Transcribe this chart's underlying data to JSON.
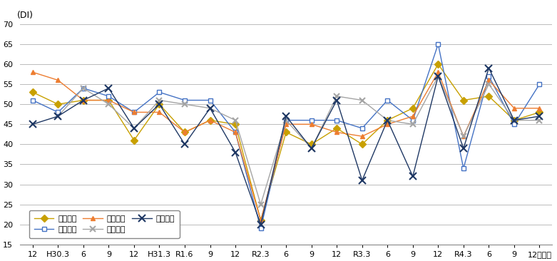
{
  "x_labels": [
    "12",
    "H30.3",
    "6",
    "9",
    "12",
    "H31.3",
    "R1.6",
    "9",
    "12",
    "R2.3",
    "6",
    "9",
    "12",
    "R3.3",
    "6",
    "9",
    "12",
    "R4.3",
    "6",
    "9",
    "12（月）"
  ],
  "series": [
    {
      "name": "県北地域",
      "color": "#C8A000",
      "marker": "D",
      "marker_size": 5,
      "marker_face": "#C8A000",
      "values": [
        53,
        50,
        51,
        51,
        41,
        50,
        43,
        46,
        45,
        21,
        43,
        40,
        44,
        40,
        46,
        49,
        60,
        51,
        52,
        46,
        48
      ]
    },
    {
      "name": "県央地域",
      "color": "#4472C4",
      "marker": "s",
      "marker_size": 5,
      "marker_face": "white",
      "values": [
        51,
        48,
        54,
        52,
        48,
        53,
        51,
        51,
        43,
        19,
        46,
        46,
        46,
        44,
        51,
        46,
        65,
        34,
        57,
        45,
        55
      ]
    },
    {
      "name": "鹿行地域",
      "color": "#ED7D31",
      "marker": "^",
      "marker_size": 5,
      "marker_face": "#ED7D31",
      "values": [
        58,
        56,
        51,
        51,
        48,
        48,
        43,
        46,
        43,
        21,
        45,
        45,
        43,
        42,
        45,
        47,
        58,
        42,
        56,
        49,
        49
      ]
    },
    {
      "name": "県南地域",
      "color": "#A5A5A5",
      "marker": "x",
      "marker_size": 6,
      "marker_face": "#A5A5A5",
      "values": [
        null,
        47,
        54,
        50,
        44,
        51,
        50,
        49,
        46,
        25,
        46,
        39,
        52,
        51,
        46,
        45,
        57,
        42,
        55,
        46,
        46
      ]
    },
    {
      "name": "県西地域",
      "color": "#1F3864",
      "marker": "x",
      "marker_size": 7,
      "marker_face": "#1F3864",
      "values": [
        45,
        47,
        51,
        54,
        44,
        50,
        40,
        49,
        38,
        20,
        47,
        39,
        51,
        31,
        46,
        32,
        57,
        39,
        59,
        46,
        47
      ]
    }
  ],
  "ylim": [
    15,
    70
  ],
  "yticks": [
    15,
    20,
    25,
    30,
    35,
    40,
    45,
    50,
    55,
    60,
    65,
    70
  ],
  "title_y_label": "(DI)",
  "background_color": "#FFFFFF",
  "grid_color": "#BBBBBB",
  "figsize": [
    7.81,
    3.66
  ],
  "dpi": 100
}
